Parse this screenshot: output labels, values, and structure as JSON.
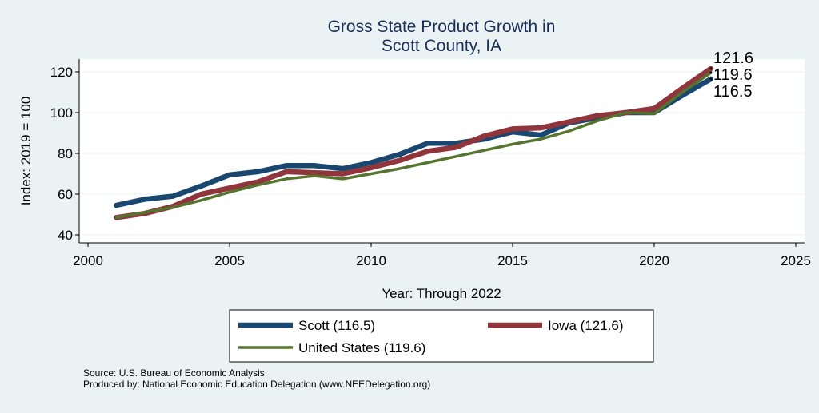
{
  "chart_data": {
    "type": "line",
    "title": [
      "Gross State Product Growth in",
      "Scott County, IA"
    ],
    "xlabel": "Year: Through 2022",
    "ylabel": "Index: 2019 = 100",
    "xlim": [
      2000,
      2025
    ],
    "ylim": [
      40,
      125
    ],
    "xticks": [
      2000,
      2005,
      2010,
      2015,
      2020,
      2025
    ],
    "yticks": [
      40,
      60,
      80,
      100,
      120
    ],
    "grid": true,
    "legend_position": "bottom",
    "x": [
      2001,
      2002,
      2003,
      2004,
      2005,
      2006,
      2007,
      2008,
      2009,
      2010,
      2011,
      2012,
      2013,
      2014,
      2015,
      2016,
      2017,
      2018,
      2019,
      2020,
      2021,
      2022
    ],
    "series": [
      {
        "name": "Scott  (116.5)",
        "color": "#1a476f",
        "values": [
          54.5,
          57.5,
          59.0,
          64.0,
          69.5,
          71.0,
          74.0,
          74.0,
          72.5,
          75.5,
          79.5,
          85.0,
          85.0,
          87.0,
          90.5,
          89.0,
          95.0,
          97.5,
          100.0,
          100.0,
          108.5,
          116.5
        ],
        "end_label": "116.5"
      },
      {
        "name": "Iowa (121.6)",
        "color": "#90353b",
        "values": [
          48.5,
          50.5,
          54.0,
          60.0,
          63.0,
          66.0,
          71.0,
          70.5,
          70.0,
          73.0,
          76.5,
          81.0,
          83.0,
          88.5,
          92.0,
          92.5,
          95.5,
          98.5,
          100.0,
          102.0,
          112.0,
          121.6
        ],
        "end_label": "121.6"
      },
      {
        "name": "United States (119.6)",
        "color": "#55752f",
        "values": [
          48.5,
          51.0,
          53.5,
          57.0,
          61.0,
          64.5,
          67.5,
          69.0,
          67.5,
          70.0,
          72.5,
          75.5,
          78.5,
          81.5,
          84.5,
          87.0,
          91.0,
          96.0,
          100.0,
          99.5,
          110.0,
          119.6
        ],
        "end_label": "119.6"
      }
    ]
  },
  "notes": {
    "source": "Source: U.S. Bureau of Economic Analysis",
    "produced_by": "Produced by: National Economic Education Delegation (www.NEEDelegation.org)"
  }
}
